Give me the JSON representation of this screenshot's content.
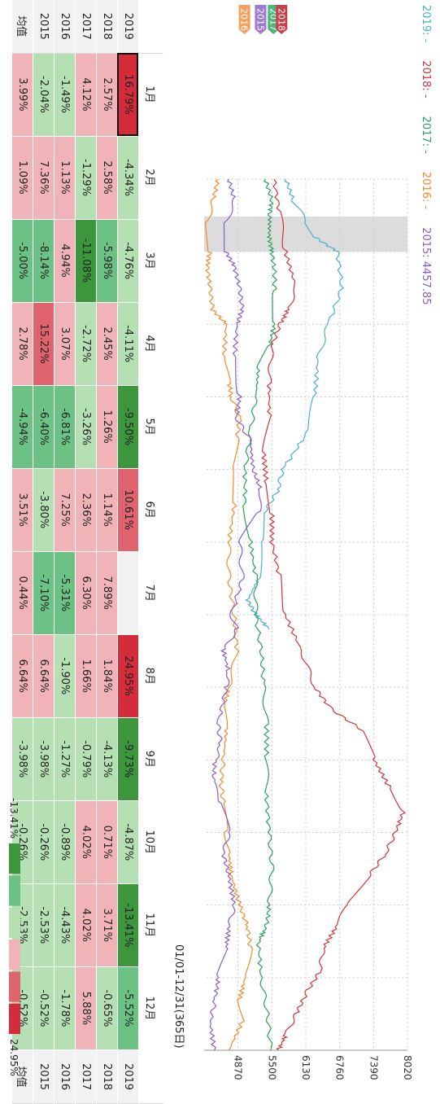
{
  "legend": {
    "items": [
      {
        "year": "2019",
        "value": "-",
        "color": "#4aaec9"
      },
      {
        "year": "2018",
        "value": "-",
        "color": "#d0343a"
      },
      {
        "year": "2017",
        "value": "-",
        "color": "#2aa05a"
      },
      {
        "year": "2016",
        "value": "-",
        "color": "#f08a2c"
      },
      {
        "year": "2015",
        "value": "4457.85",
        "color": "#8a5cc6"
      }
    ]
  },
  "range_label": "01/01-12/31(365日)",
  "chart_data": {
    "type": "line",
    "x_label_unit": "month",
    "ylim": [
      4240,
      8020
    ],
    "y_ticks": [
      4870,
      5500,
      6130,
      6760,
      7390,
      8020
    ],
    "grid": true,
    "highlight_month": "1月",
    "series": [
      {
        "name": "2019",
        "color": "#4aaec9",
        "points": [
          [
            0,
            5760
          ],
          [
            0.3,
            5900
          ],
          [
            0.6,
            6150
          ],
          [
            0.8,
            6300
          ],
          [
            1.0,
            6720
          ],
          [
            1.5,
            6800
          ],
          [
            2.0,
            6550
          ],
          [
            2.5,
            6350
          ],
          [
            3.0,
            6300
          ],
          [
            3.5,
            6150
          ],
          [
            4.0,
            5700
          ],
          [
            4.3,
            5600
          ],
          [
            4.6,
            5350
          ],
          [
            5.0,
            5300
          ],
          [
            5.5,
            5250
          ],
          [
            5.8,
            5050
          ],
          [
            6.0,
            5200
          ],
          [
            6.2,
            5450
          ]
        ]
      },
      {
        "name": "2018",
        "color": "#d0343a",
        "points": [
          [
            0,
            5540
          ],
          [
            0.5,
            5650
          ],
          [
            1.0,
            5750
          ],
          [
            1.5,
            5950
          ],
          [
            1.8,
            5800
          ],
          [
            2.0,
            5650
          ],
          [
            2.3,
            5500
          ],
          [
            2.8,
            5450
          ],
          [
            3.3,
            5450
          ],
          [
            3.8,
            5350
          ],
          [
            4.2,
            5400
          ],
          [
            4.6,
            5500
          ],
          [
            5.0,
            5500
          ],
          [
            5.5,
            5650
          ],
          [
            6.0,
            5750
          ],
          [
            6.5,
            6050
          ],
          [
            7.0,
            6300
          ],
          [
            7.3,
            6600
          ],
          [
            7.6,
            7200
          ],
          [
            8.0,
            7400
          ],
          [
            8.4,
            7700
          ],
          [
            8.7,
            7950
          ],
          [
            9.0,
            7800
          ],
          [
            9.3,
            7600
          ],
          [
            9.6,
            7300
          ],
          [
            10.0,
            6900
          ],
          [
            10.3,
            6700
          ],
          [
            10.6,
            6450
          ],
          [
            10.9,
            6400
          ],
          [
            11.2,
            6150
          ],
          [
            11.5,
            5950
          ],
          [
            11.8,
            5750
          ],
          [
            12.0,
            5620
          ]
        ]
      },
      {
        "name": "2017",
        "color": "#2aa05a",
        "points": [
          [
            0,
            5380
          ],
          [
            0.3,
            5500
          ],
          [
            0.5,
            5460
          ],
          [
            0.8,
            5450
          ],
          [
            1.0,
            5500
          ],
          [
            1.3,
            5550
          ],
          [
            1.6,
            5550
          ],
          [
            2.0,
            5550
          ],
          [
            2.3,
            5450
          ],
          [
            2.6,
            5250
          ],
          [
            3.0,
            5200
          ],
          [
            3.5,
            5100
          ],
          [
            4.0,
            5000
          ],
          [
            4.5,
            5000
          ],
          [
            5.0,
            5100
          ],
          [
            5.5,
            5200
          ],
          [
            6.0,
            5200
          ],
          [
            6.5,
            5300
          ],
          [
            7.0,
            5350
          ],
          [
            7.5,
            5400
          ],
          [
            8.0,
            5400
          ],
          [
            8.5,
            5400
          ],
          [
            9.0,
            5450
          ],
          [
            9.5,
            5500
          ],
          [
            10.0,
            5450
          ],
          [
            10.3,
            5400
          ],
          [
            10.5,
            5250
          ],
          [
            11.0,
            5300
          ],
          [
            11.5,
            5420
          ],
          [
            12.0,
            5480
          ]
        ]
      },
      {
        "name": "2016",
        "color": "#f08a2c",
        "points": [
          [
            0,
            4500
          ],
          [
            0.3,
            4400
          ],
          [
            0.6,
            4300
          ],
          [
            1.0,
            4350
          ],
          [
            1.2,
            4300
          ],
          [
            1.5,
            4350
          ],
          [
            1.8,
            4400
          ],
          [
            2.0,
            4650
          ],
          [
            2.5,
            4600
          ],
          [
            2.8,
            4700
          ],
          [
            3.0,
            4750
          ],
          [
            3.3,
            4900
          ],
          [
            3.6,
            4850
          ],
          [
            4.0,
            4750
          ],
          [
            4.5,
            4800
          ],
          [
            5.0,
            4700
          ],
          [
            5.5,
            4700
          ],
          [
            6.0,
            4800
          ],
          [
            6.5,
            4850
          ],
          [
            7.0,
            4700
          ],
          [
            7.3,
            4600
          ],
          [
            7.6,
            4650
          ],
          [
            8.0,
            4600
          ],
          [
            8.3,
            4550
          ],
          [
            8.6,
            4600
          ],
          [
            9.0,
            4650
          ],
          [
            9.3,
            4700
          ],
          [
            9.6,
            4750
          ],
          [
            10.0,
            4900
          ],
          [
            10.3,
            5050
          ],
          [
            10.6,
            5100
          ],
          [
            11.0,
            5000
          ],
          [
            11.3,
            4900
          ],
          [
            11.6,
            4950
          ],
          [
            12.0,
            4700
          ]
        ]
      },
      {
        "name": "2015",
        "color": "#8a5cc6",
        "points": [
          [
            0,
            4700
          ],
          [
            0.3,
            4800
          ],
          [
            0.6,
            4650
          ],
          [
            1.0,
            4650
          ],
          [
            1.2,
            4800
          ],
          [
            1.5,
            4900
          ],
          [
            1.8,
            4950
          ],
          [
            2.0,
            4850
          ],
          [
            2.5,
            4800
          ],
          [
            3.0,
            4900
          ],
          [
            3.3,
            4850
          ],
          [
            3.6,
            5100
          ],
          [
            4.0,
            5150
          ],
          [
            4.3,
            5300
          ],
          [
            4.6,
            5250
          ],
          [
            5.0,
            4900
          ],
          [
            5.5,
            4950
          ],
          [
            6.0,
            4750
          ],
          [
            6.2,
            4850
          ],
          [
            6.5,
            4600
          ],
          [
            6.8,
            4700
          ],
          [
            7.0,
            4650
          ],
          [
            7.5,
            4500
          ],
          [
            7.8,
            4550
          ],
          [
            8.0,
            4450
          ],
          [
            8.3,
            4400
          ],
          [
            8.6,
            4550
          ],
          [
            9.0,
            4700
          ],
          [
            9.3,
            4600
          ],
          [
            9.6,
            4700
          ],
          [
            10.0,
            4800
          ],
          [
            10.3,
            4700
          ],
          [
            10.6,
            4650
          ],
          [
            11.0,
            4500
          ],
          [
            11.3,
            4450
          ],
          [
            11.6,
            4350
          ],
          [
            12.0,
            4430
          ]
        ]
      }
    ]
  },
  "table": {
    "months": [
      "1月",
      "2月",
      "3月",
      "4月",
      "5月",
      "6月",
      "7月",
      "8月",
      "9月",
      "10月",
      "11月",
      "12月"
    ],
    "rows": [
      {
        "label": "2019",
        "cells": [
          "16.79%",
          "-4.34%",
          "-4.76%",
          "-4.11%",
          "-9.50%",
          "10.61%",
          "",
          "24.95%",
          "-9.73%",
          "-4.87%",
          "-13.41%",
          "-5.52%"
        ],
        "levels": [
          5,
          -1,
          -1,
          -1,
          -3,
          4,
          0,
          5,
          -3,
          -1,
          -3,
          -2
        ]
      },
      {
        "label": "2018",
        "cells": [
          "2.57%",
          "2.58%",
          "-5.98%",
          "2.45%",
          "1.26%",
          "1.14%",
          "7.89%",
          "1.84%",
          "-4.13%",
          "0.71%",
          "3.71%",
          "-0.65%"
        ],
        "levels": [
          1,
          1,
          -2,
          1,
          1,
          1,
          1,
          1,
          -1,
          1,
          1,
          -1
        ]
      },
      {
        "label": "2017",
        "cells": [
          "4.12%",
          "-1.29%",
          "-11.08%",
          "-2.72%",
          "-3.26%",
          "2.36%",
          "6.30%",
          "1.66%",
          "-0.79%",
          "4.02%",
          "4.02%",
          "5.88%"
        ],
        "levels": [
          1,
          -1,
          -3,
          -1,
          -1,
          1,
          1,
          1,
          -1,
          1,
          1,
          1
        ]
      },
      {
        "label": "2016",
        "cells": [
          "-1.49%",
          "1.13%",
          "4.94%",
          "3.07%",
          "-6.81%",
          "7.25%",
          "-5.31%",
          "-1.90%",
          "-1.27%",
          "-0.89%",
          "-4.43%",
          "-1.78%"
        ],
        "levels": [
          -1,
          1,
          1,
          1,
          -2,
          1,
          -2,
          -1,
          -1,
          -1,
          -1,
          -1
        ]
      },
      {
        "label": "2015",
        "cells": [
          "-2.04%",
          "7.36%",
          "-8.14%",
          "15.22%",
          "-6.40%",
          "-3.80%",
          "-7.10%",
          "6.64%",
          "-3.98%",
          "-0.26%",
          "-2.53%",
          "-0.52%"
        ],
        "levels": [
          -1,
          1,
          -2,
          4,
          -2,
          -1,
          -2,
          1,
          -1,
          -1,
          -1,
          -1
        ]
      },
      {
        "label": "均值",
        "cells": [
          "3.99%",
          "1.09%",
          "-5.00%",
          "2.78%",
          "-4.94%",
          "3.51%",
          "0.44%",
          "6.64%",
          "-3.98%",
          "-0.26%",
          "-2.53%",
          "-0.52%"
        ],
        "levels": [
          1,
          1,
          -2,
          1,
          -2,
          1,
          1,
          1,
          -1,
          -1,
          -1,
          -1
        ]
      }
    ],
    "selected": {
      "row": 0,
      "col": 0
    }
  },
  "scale": {
    "min_label": "-13.41%",
    "max_label": "24.95%",
    "colors": [
      "#3c963c",
      "#6cc285",
      "#b4e0b4",
      "#f0b4b8",
      "#e0646e",
      "#d42c3a"
    ]
  }
}
